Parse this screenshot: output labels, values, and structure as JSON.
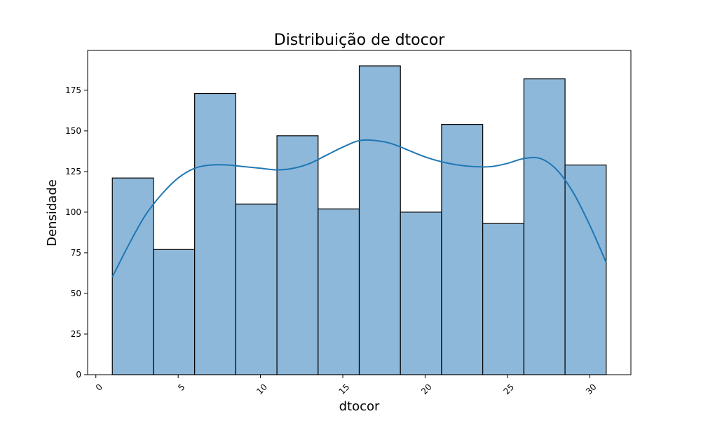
{
  "chart_data": {
    "type": "bar",
    "subtype": "histogram_with_kde",
    "title": "Distribuição de dtocor",
    "xlabel": "dtocor",
    "ylabel": "Densidade",
    "xlim": [
      -0.5,
      32.5
    ],
    "ylim": [
      0,
      199.5
    ],
    "x_ticks": [
      0,
      5,
      10,
      15,
      20,
      25,
      30
    ],
    "x_tick_labels": [
      "0",
      "5",
      "10",
      "15",
      "20",
      "25",
      "30"
    ],
    "x_tick_rotation_deg": 45,
    "y_ticks": [
      0,
      25,
      50,
      75,
      100,
      125,
      150,
      175
    ],
    "y_tick_labels": [
      "0",
      "25",
      "50",
      "75",
      "100",
      "125",
      "150",
      "175"
    ],
    "grid": false,
    "legend": "none",
    "bins": [
      {
        "x0": 1.0,
        "x1": 3.5,
        "count": 121
      },
      {
        "x0": 3.5,
        "x1": 6.0,
        "count": 77
      },
      {
        "x0": 6.0,
        "x1": 8.5,
        "count": 173
      },
      {
        "x0": 8.5,
        "x1": 11.0,
        "count": 105
      },
      {
        "x0": 11.0,
        "x1": 13.5,
        "count": 147
      },
      {
        "x0": 13.5,
        "x1": 16.0,
        "count": 102
      },
      {
        "x0": 16.0,
        "x1": 18.5,
        "count": 190
      },
      {
        "x0": 18.5,
        "x1": 21.0,
        "count": 100
      },
      {
        "x0": 21.0,
        "x1": 23.5,
        "count": 154
      },
      {
        "x0": 23.5,
        "x1": 26.0,
        "count": 93
      },
      {
        "x0": 26.0,
        "x1": 28.5,
        "count": 182
      },
      {
        "x0": 28.5,
        "x1": 31.0,
        "count": 129
      }
    ],
    "kde": {
      "x": [
        1,
        2,
        3,
        4,
        5,
        6,
        7,
        8,
        9,
        10,
        11,
        12,
        13,
        14,
        15,
        16,
        17,
        18,
        19,
        20,
        21,
        22,
        23,
        24,
        25,
        26,
        27,
        28,
        29,
        30,
        31
      ],
      "y": [
        60,
        80,
        98,
        111,
        121,
        127,
        129,
        129,
        128,
        127,
        126,
        127,
        130,
        135,
        140,
        144,
        144,
        142,
        138,
        134,
        131,
        129,
        128,
        128,
        130,
        133,
        133,
        126,
        112,
        92,
        69
      ]
    },
    "colors": {
      "bar_fill": "#8db8da",
      "bar_edge": "#000000",
      "kde_line": "#1f77b4",
      "axes": "#000000"
    }
  }
}
